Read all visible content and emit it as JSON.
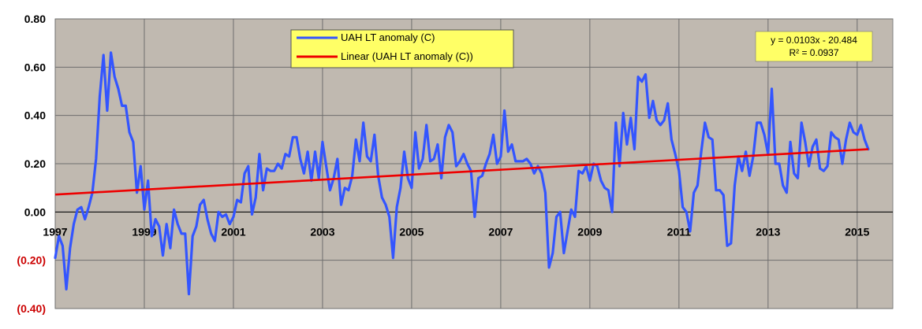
{
  "chart_data": {
    "type": "line",
    "title": "",
    "xlabel": "",
    "ylabel": "",
    "xlim": [
      1997,
      2015.8
    ],
    "ylim": [
      -0.4,
      0.8
    ],
    "grid": true,
    "legend_position": "top-center",
    "x_ticks": [
      1997,
      1999,
      2001,
      2003,
      2005,
      2007,
      2009,
      2011,
      2013,
      2015
    ],
    "x_tick_labels": [
      "1997",
      "1999",
      "2001",
      "2003",
      "2005",
      "2007",
      "2009",
      "2011",
      "2013",
      "2015"
    ],
    "y_ticks": [
      -0.4,
      -0.2,
      0.0,
      0.2,
      0.4,
      0.6,
      0.8
    ],
    "y_tick_labels": [
      "(0.40)",
      "(0.20)",
      "0.00",
      "0.20",
      "0.40",
      "0.60",
      "0.80"
    ],
    "series": [
      {
        "name": "UAH LT anomaly (C)",
        "color": "#3355ff",
        "x_start": 1997.0,
        "x_step": 0.0833333,
        "values": [
          -0.19,
          -0.1,
          -0.14,
          -0.32,
          -0.15,
          -0.05,
          0.01,
          0.02,
          -0.03,
          0.02,
          0.08,
          0.22,
          0.48,
          0.65,
          0.42,
          0.66,
          0.56,
          0.51,
          0.44,
          0.44,
          0.33,
          0.29,
          0.08,
          0.19,
          0.01,
          0.13,
          -0.1,
          -0.03,
          -0.06,
          -0.18,
          -0.05,
          -0.15,
          0.01,
          -0.05,
          -0.09,
          -0.09,
          -0.34,
          -0.1,
          -0.06,
          0.03,
          0.05,
          -0.03,
          -0.09,
          -0.12,
          0.0,
          -0.02,
          -0.01,
          -0.05,
          -0.02,
          0.05,
          0.04,
          0.16,
          0.19,
          -0.01,
          0.06,
          0.24,
          0.09,
          0.18,
          0.17,
          0.17,
          0.2,
          0.18,
          0.24,
          0.23,
          0.31,
          0.31,
          0.22,
          0.16,
          0.25,
          0.13,
          0.25,
          0.14,
          0.29,
          0.19,
          0.09,
          0.14,
          0.22,
          0.03,
          0.1,
          0.09,
          0.15,
          0.3,
          0.21,
          0.37,
          0.23,
          0.21,
          0.32,
          0.15,
          0.06,
          0.03,
          -0.02,
          -0.19,
          0.02,
          0.1,
          0.25,
          0.14,
          0.1,
          0.33,
          0.18,
          0.22,
          0.36,
          0.21,
          0.22,
          0.28,
          0.14,
          0.31,
          0.36,
          0.33,
          0.19,
          0.21,
          0.24,
          0.2,
          0.17,
          -0.02,
          0.14,
          0.15,
          0.2,
          0.24,
          0.32,
          0.2,
          0.23,
          0.42,
          0.25,
          0.28,
          0.21,
          0.21,
          0.21,
          0.22,
          0.2,
          0.16,
          0.19,
          0.16,
          0.08,
          -0.23,
          -0.17,
          -0.02,
          0.0,
          -0.17,
          -0.08,
          0.01,
          -0.02,
          0.17,
          0.16,
          0.19,
          0.13,
          0.2,
          0.19,
          0.13,
          0.1,
          0.09,
          0.0,
          0.37,
          0.19,
          0.41,
          0.28,
          0.39,
          0.26,
          0.56,
          0.54,
          0.57,
          0.39,
          0.46,
          0.38,
          0.36,
          0.38,
          0.45,
          0.3,
          0.24,
          0.17,
          0.02,
          0.0,
          -0.08,
          0.08,
          0.11,
          0.25,
          0.37,
          0.31,
          0.3,
          0.09,
          0.09,
          0.07,
          -0.14,
          -0.13,
          0.11,
          0.23,
          0.17,
          0.25,
          0.15,
          0.23,
          0.37,
          0.37,
          0.32,
          0.24,
          0.51,
          0.2,
          0.2,
          0.11,
          0.08,
          0.29,
          0.16,
          0.14,
          0.37,
          0.29,
          0.19,
          0.27,
          0.3,
          0.18,
          0.17,
          0.19,
          0.33,
          0.31,
          0.3,
          0.2,
          0.3,
          0.37,
          0.33,
          0.32,
          0.36,
          0.3,
          0.26
        ]
      },
      {
        "name": "Linear (UAH LT anomaly (C))",
        "color": "#ee0000",
        "x": [
          1997.0,
          2015.25
        ],
        "values": [
          0.0721,
          0.2601
        ]
      }
    ],
    "annotations": [
      {
        "text": "y = 0.0103x - 20.484"
      },
      {
        "text": "R² = 0.0937"
      }
    ]
  },
  "colors": {
    "plot_background": "#c0b9b0",
    "legend_background": "#ffff66",
    "negative_tick_label": "#cc0000"
  }
}
